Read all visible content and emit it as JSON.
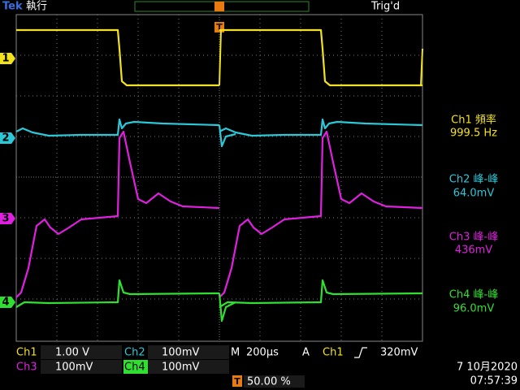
{
  "status_bar": {
    "brand": "Tek",
    "run_state": "執行",
    "trigger_status": "Trig'd",
    "trigger_marker": "T"
  },
  "channel_markers": [
    "1",
    "2",
    "3",
    "4"
  ],
  "measurements": [
    {
      "label": "Ch1 頻率",
      "value": "999.5 Hz"
    },
    {
      "label": "Ch2 峰-峰",
      "value": "64.0mV"
    },
    {
      "label": "Ch3 峰-峰",
      "value": "436mV"
    },
    {
      "label": "Ch4 峰-峰",
      "value": "96.0mV"
    }
  ],
  "settings": {
    "ch1_label": "Ch1",
    "ch1_scale": "1.00 V",
    "ch2_label": "Ch2",
    "ch2_scale": "100mV",
    "ch3_label": "Ch3",
    "ch3_scale": "100mV",
    "ch4_label": "Ch4",
    "ch4_scale": "100mV",
    "timebase_label": "M",
    "timebase": "200µs",
    "trigger_mode": "A",
    "trigger_source": "Ch1",
    "trigger_level": "320mV",
    "trigger_position": "50.00 %"
  },
  "datetime": {
    "date": "7 10月2020",
    "time": "07:57:39"
  }
}
